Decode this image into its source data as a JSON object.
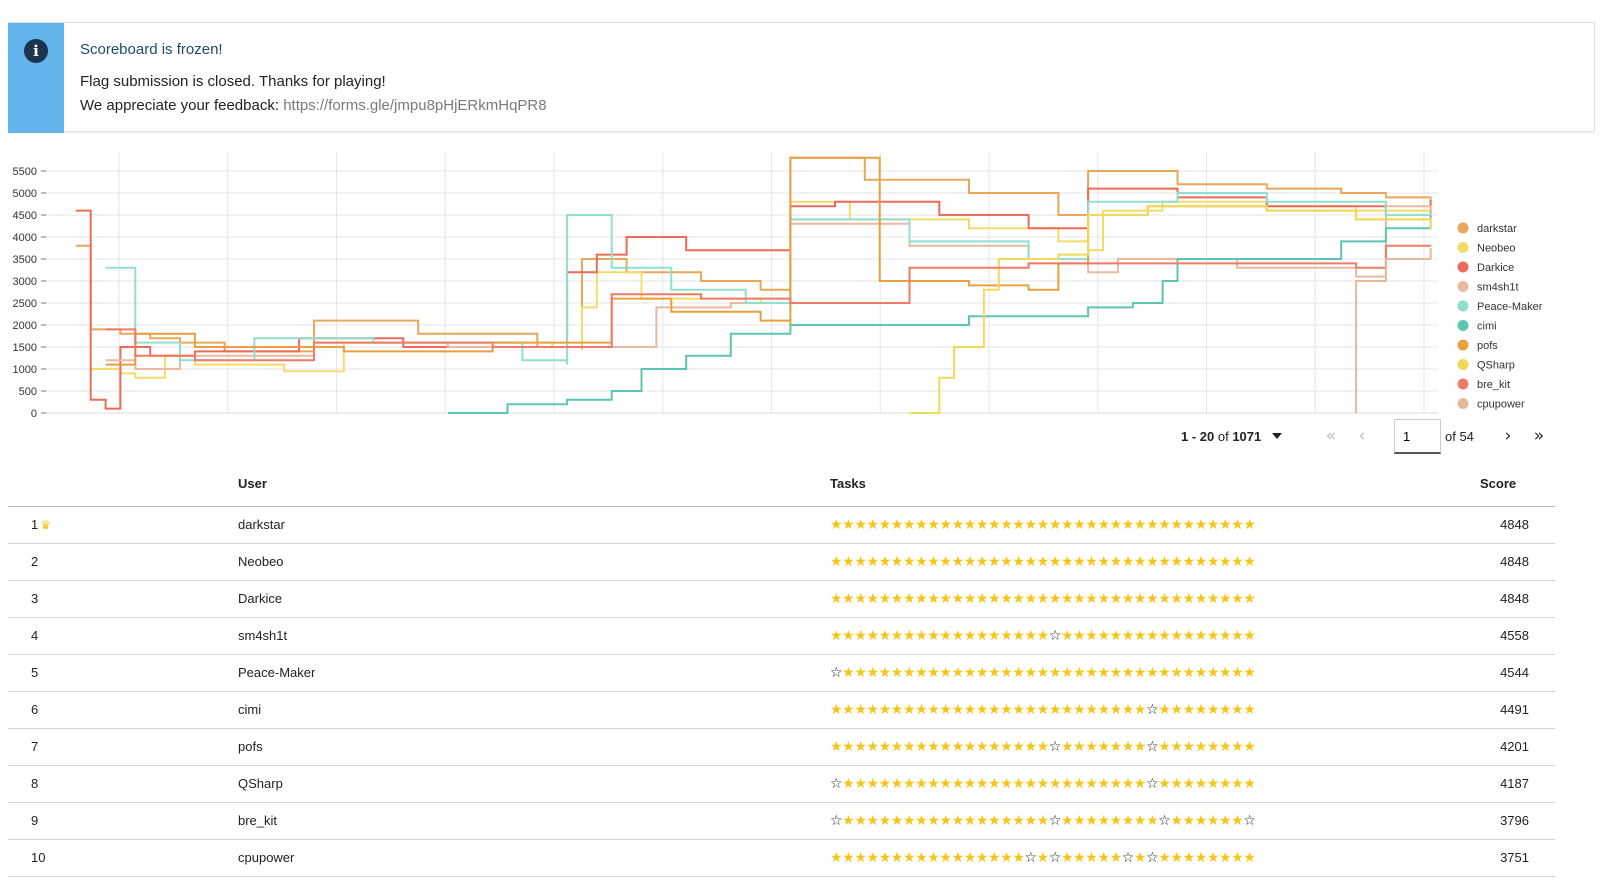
{
  "notice": {
    "title": "Scoreboard is frozen!",
    "line1": "Flag submission is closed. Thanks for playing!",
    "line2_prefix": "We appreciate your feedback: ",
    "link": "https://forms.gle/jmpu8pHjERkmHqPR8",
    "icon": "info-icon"
  },
  "colors": {
    "accent": "#63b3ed",
    "star": "#f5c518"
  },
  "chart_data": {
    "type": "line",
    "title": "",
    "ylim": [
      0,
      5500
    ],
    "yticks": [
      "0",
      "500",
      "1000",
      "1500",
      "2000",
      "2500",
      "3000",
      "3500",
      "4000",
      "4500",
      "5000",
      "5500"
    ],
    "grid": true,
    "legend_position": "right",
    "series": [
      {
        "name": "darkstar",
        "color": "#e8a75a",
        "points": [
          [
            0.02,
            3800
          ],
          [
            0.03,
            1900
          ],
          [
            0.05,
            1800
          ],
          [
            0.07,
            1700
          ],
          [
            0.09,
            1600
          ],
          [
            0.12,
            1400
          ],
          [
            0.15,
            1400
          ],
          [
            0.18,
            2100
          ],
          [
            0.25,
            1800
          ],
          [
            0.33,
            1500
          ],
          [
            0.36,
            1450
          ],
          [
            0.36,
            3500
          ],
          [
            0.39,
            3200
          ],
          [
            0.44,
            3000
          ],
          [
            0.48,
            2800
          ],
          [
            0.5,
            2700
          ],
          [
            0.5,
            5800
          ],
          [
            0.55,
            5300
          ],
          [
            0.62,
            5000
          ],
          [
            0.68,
            4500
          ],
          [
            0.7,
            4300
          ],
          [
            0.7,
            5500
          ],
          [
            0.76,
            5200
          ],
          [
            0.82,
            5100
          ],
          [
            0.87,
            5000
          ],
          [
            0.9,
            4900
          ],
          [
            0.93,
            4848
          ]
        ]
      },
      {
        "name": "Neobeo",
        "color": "#f3dc6a",
        "points": [
          [
            0.03,
            1000
          ],
          [
            0.05,
            900
          ],
          [
            0.06,
            800
          ],
          [
            0.08,
            1300
          ],
          [
            0.1,
            1100
          ],
          [
            0.16,
            950
          ],
          [
            0.2,
            1600
          ],
          [
            0.34,
            1500
          ],
          [
            0.36,
            2400
          ],
          [
            0.37,
            3200
          ],
          [
            0.4,
            2600
          ],
          [
            0.48,
            2500
          ],
          [
            0.5,
            4800
          ],
          [
            0.54,
            4400
          ],
          [
            0.62,
            4200
          ],
          [
            0.68,
            3900
          ],
          [
            0.7,
            3700
          ],
          [
            0.71,
            4600
          ],
          [
            0.75,
            4800
          ],
          [
            0.82,
            4700
          ],
          [
            0.88,
            4600
          ],
          [
            0.93,
            4848
          ]
        ]
      },
      {
        "name": "Darkice",
        "color": "#ec6b5a",
        "points": [
          [
            0.02,
            4600
          ],
          [
            0.03,
            300
          ],
          [
            0.04,
            100
          ],
          [
            0.05,
            1500
          ],
          [
            0.07,
            1300
          ],
          [
            0.1,
            1400
          ],
          [
            0.17,
            1700
          ],
          [
            0.24,
            1500
          ],
          [
            0.35,
            1450
          ],
          [
            0.35,
            3200
          ],
          [
            0.37,
            3600
          ],
          [
            0.39,
            4000
          ],
          [
            0.43,
            3700
          ],
          [
            0.5,
            4700
          ],
          [
            0.53,
            4800
          ],
          [
            0.6,
            4500
          ],
          [
            0.66,
            4200
          ],
          [
            0.7,
            4000
          ],
          [
            0.7,
            5100
          ],
          [
            0.76,
            4900
          ],
          [
            0.82,
            4700
          ],
          [
            0.9,
            4500
          ],
          [
            0.93,
            4848
          ]
        ]
      },
      {
        "name": "sm4sh1t",
        "color": "#e9b9a0",
        "points": [
          [
            0.04,
            1200
          ],
          [
            0.06,
            1000
          ],
          [
            0.09,
            1300
          ],
          [
            0.18,
            1600
          ],
          [
            0.27,
            1500
          ],
          [
            0.38,
            1500
          ],
          [
            0.41,
            2400
          ],
          [
            0.46,
            2500
          ],
          [
            0.5,
            2400
          ],
          [
            0.5,
            4300
          ],
          [
            0.58,
            3800
          ],
          [
            0.66,
            3500
          ],
          [
            0.7,
            3200
          ],
          [
            0.72,
            3500
          ],
          [
            0.8,
            3300
          ],
          [
            0.88,
            3100
          ],
          [
            0.9,
            4700
          ],
          [
            0.93,
            4558
          ]
        ]
      },
      {
        "name": "Peace-Maker",
        "color": "#90dfcf",
        "points": [
          [
            0.04,
            3300
          ],
          [
            0.06,
            1600
          ],
          [
            0.09,
            1200
          ],
          [
            0.14,
            1700
          ],
          [
            0.22,
            1600
          ],
          [
            0.32,
            1200
          ],
          [
            0.35,
            1100
          ],
          [
            0.35,
            4500
          ],
          [
            0.38,
            3300
          ],
          [
            0.42,
            2800
          ],
          [
            0.47,
            2500
          ],
          [
            0.5,
            2400
          ],
          [
            0.5,
            4400
          ],
          [
            0.58,
            3900
          ],
          [
            0.66,
            3500
          ],
          [
            0.7,
            3400
          ],
          [
            0.7,
            4800
          ],
          [
            0.76,
            5000
          ],
          [
            0.82,
            4800
          ],
          [
            0.9,
            4500
          ],
          [
            0.93,
            4544
          ]
        ]
      },
      {
        "name": "cimi",
        "color": "#5ec5b0",
        "points": [
          [
            0.27,
            0
          ],
          [
            0.31,
            200
          ],
          [
            0.35,
            300
          ],
          [
            0.38,
            500
          ],
          [
            0.4,
            1000
          ],
          [
            0.43,
            1300
          ],
          [
            0.46,
            1800
          ],
          [
            0.5,
            2000
          ],
          [
            0.56,
            2000
          ],
          [
            0.6,
            2000
          ],
          [
            0.62,
            2200
          ],
          [
            0.68,
            2200
          ],
          [
            0.7,
            2400
          ],
          [
            0.73,
            2500
          ],
          [
            0.75,
            3000
          ],
          [
            0.76,
            3500
          ],
          [
            0.82,
            3500
          ],
          [
            0.87,
            3900
          ],
          [
            0.9,
            4200
          ],
          [
            0.93,
            4491
          ]
        ]
      },
      {
        "name": "pofs",
        "color": "#e8a040",
        "points": [
          [
            0.04,
            1100
          ],
          [
            0.06,
            1800
          ],
          [
            0.1,
            1500
          ],
          [
            0.2,
            1400
          ],
          [
            0.3,
            1600
          ],
          [
            0.36,
            1600
          ],
          [
            0.38,
            2600
          ],
          [
            0.42,
            2300
          ],
          [
            0.48,
            2100
          ],
          [
            0.5,
            2000
          ],
          [
            0.5,
            5800
          ],
          [
            0.56,
            3000
          ],
          [
            0.62,
            2900
          ],
          [
            0.66,
            2800
          ],
          [
            0.68,
            3400
          ],
          [
            0.7,
            4500
          ],
          [
            0.74,
            4700
          ],
          [
            0.82,
            4600
          ],
          [
            0.88,
            4400
          ],
          [
            0.93,
            4201
          ]
        ]
      },
      {
        "name": "QSharp",
        "color": "#f0da5a",
        "points": [
          [
            0.58,
            0
          ],
          [
            0.6,
            800
          ],
          [
            0.61,
            1500
          ],
          [
            0.63,
            2800
          ],
          [
            0.64,
            3500
          ],
          [
            0.68,
            3600
          ],
          [
            0.7,
            4500
          ],
          [
            0.74,
            4700
          ],
          [
            0.82,
            4600
          ],
          [
            0.88,
            4400
          ],
          [
            0.93,
            4187
          ]
        ]
      },
      {
        "name": "bre_kit",
        "color": "#f07a66",
        "points": [
          [
            0.04,
            1900
          ],
          [
            0.06,
            1300
          ],
          [
            0.1,
            1200
          ],
          [
            0.18,
            1600
          ],
          [
            0.3,
            1500
          ],
          [
            0.36,
            1500
          ],
          [
            0.38,
            2700
          ],
          [
            0.44,
            2600
          ],
          [
            0.5,
            2500
          ],
          [
            0.58,
            3300
          ],
          [
            0.66,
            3400
          ],
          [
            0.72,
            3400
          ],
          [
            0.8,
            3400
          ],
          [
            0.88,
            3300
          ],
          [
            0.9,
            3800
          ],
          [
            0.93,
            3796
          ]
        ]
      },
      {
        "name": "cpupower",
        "color": "#e6b89a",
        "points": [
          [
            0.88,
            0
          ],
          [
            0.88,
            3000
          ],
          [
            0.9,
            3500
          ],
          [
            0.93,
            3751
          ]
        ]
      }
    ]
  },
  "pagination": {
    "range_prefix": "1 - 20",
    "range_of": " of ",
    "total": "1071",
    "page_value": "1",
    "of_pages": "of 54"
  },
  "table": {
    "headers": {
      "user": "User",
      "tasks": "Tasks",
      "score": "Score"
    },
    "rows": [
      {
        "rank": "1",
        "crown": true,
        "user": "darkstar",
        "score": "4848",
        "empty": []
      },
      {
        "rank": "2",
        "crown": false,
        "user": "Neobeo",
        "score": "4848",
        "empty": []
      },
      {
        "rank": "3",
        "crown": false,
        "user": "Darkice",
        "score": "4848",
        "empty": []
      },
      {
        "rank": "4",
        "crown": false,
        "user": "sm4sh1t",
        "score": "4558",
        "empty": [
          18
        ]
      },
      {
        "rank": "5",
        "crown": false,
        "user": "Peace-Maker",
        "score": "4544",
        "empty": [
          0
        ]
      },
      {
        "rank": "6",
        "crown": false,
        "user": "cimi",
        "score": "4491",
        "empty": [
          26
        ]
      },
      {
        "rank": "7",
        "crown": false,
        "user": "pofs",
        "score": "4201",
        "empty": [
          18,
          26
        ]
      },
      {
        "rank": "8",
        "crown": false,
        "user": "QSharp",
        "score": "4187",
        "empty": [
          0,
          26
        ]
      },
      {
        "rank": "9",
        "crown": false,
        "user": "bre_kit",
        "score": "3796",
        "empty": [
          0,
          18,
          27,
          34
        ]
      },
      {
        "rank": "10",
        "crown": false,
        "user": "cpupower",
        "score": "3751",
        "empty": [
          16,
          18,
          24,
          26
        ]
      }
    ],
    "total_tasks": 35
  }
}
